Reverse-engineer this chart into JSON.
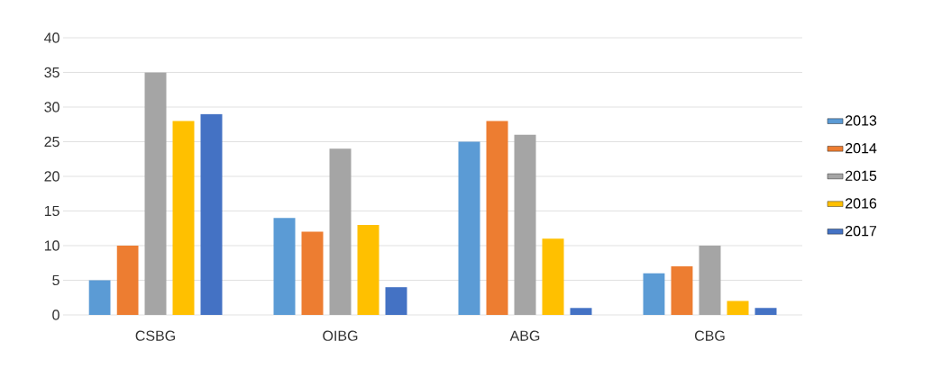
{
  "chart_data": {
    "type": "bar",
    "categories": [
      "CSBG",
      "OIBG",
      "ABG",
      "CBG"
    ],
    "series": [
      {
        "name": "2013",
        "color": "#5b9bd5",
        "values": [
          5,
          14,
          25,
          6
        ]
      },
      {
        "name": "2014",
        "color": "#ed7d31",
        "values": [
          10,
          12,
          28,
          7
        ]
      },
      {
        "name": "2015",
        "color": "#a5a5a5",
        "values": [
          35,
          24,
          26,
          10
        ]
      },
      {
        "name": "2016",
        "color": "#ffc000",
        "values": [
          28,
          13,
          11,
          2
        ]
      },
      {
        "name": "2017",
        "color": "#4472c4",
        "values": [
          29,
          4,
          1,
          1
        ]
      }
    ],
    "ylim": [
      0,
      40
    ],
    "yticks": [
      0,
      5,
      10,
      15,
      20,
      25,
      30,
      35,
      40
    ],
    "grid": "y",
    "legend": "right"
  }
}
